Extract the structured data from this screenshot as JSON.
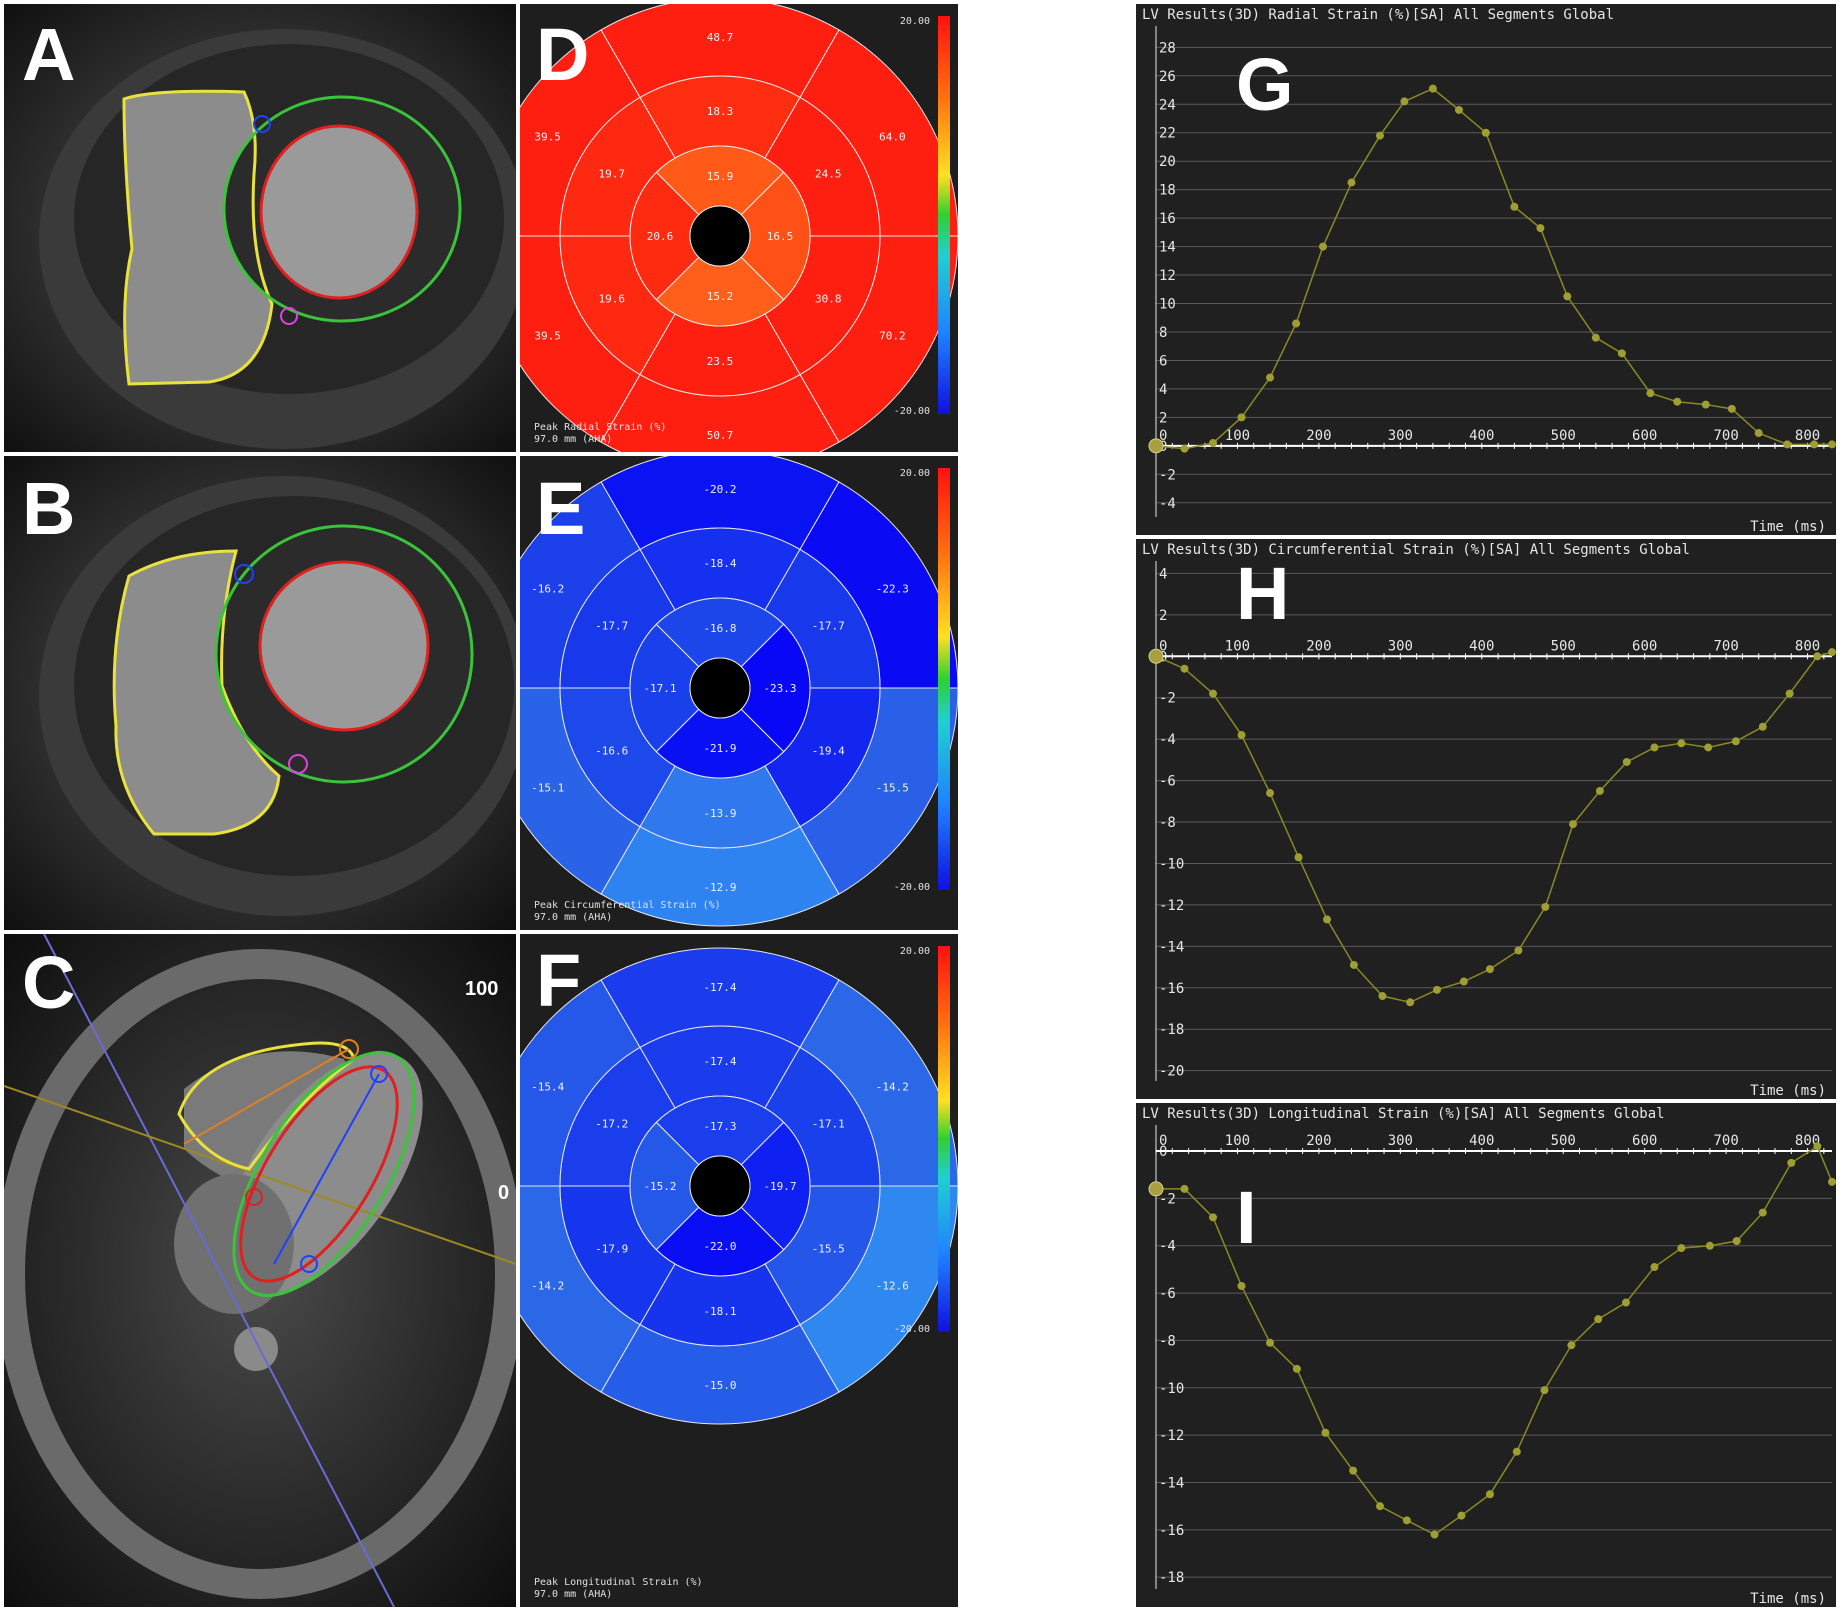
{
  "colors": {
    "background": "#000000",
    "trace": "#8a8a24",
    "marker": "#9e9e32",
    "grid": "#5a5a5a",
    "bullseye_stroke": "#e8e8e8"
  },
  "mri_panels": [
    {
      "letter": "A",
      "annotations": []
    },
    {
      "letter": "B",
      "annotations": []
    },
    {
      "letter": "C",
      "annotations": [
        "100",
        "0"
      ]
    }
  ],
  "bullseyes": [
    {
      "letter": "D",
      "caption_line1": "Peak Radial Strain (%)",
      "caption_line2": "97.0 mm (AHA)",
      "scale_max": "20.00",
      "scale_min": "-20.00",
      "basal": [
        {
          "value": "48.7",
          "color": "#ff1f10"
        },
        {
          "value": "64.0",
          "color": "#ff1f10"
        },
        {
          "value": "70.2",
          "color": "#ff1f10"
        },
        {
          "value": "50.7",
          "color": "#ff1f10"
        },
        {
          "value": "39.5",
          "color": "#ff1f10"
        },
        {
          "value": "39.5",
          "color": "#ff1f10"
        }
      ],
      "mid": [
        {
          "value": "18.3",
          "color": "#ff2e10"
        },
        {
          "value": "24.5",
          "color": "#ff1f10"
        },
        {
          "value": "30.8",
          "color": "#ff1f10"
        },
        {
          "value": "23.5",
          "color": "#ff1f10"
        },
        {
          "value": "19.6",
          "color": "#ff2810"
        },
        {
          "value": "19.7",
          "color": "#ff2810"
        }
      ],
      "apical": [
        {
          "value": "15.9",
          "color": "#ff5a18"
        },
        {
          "value": "16.5",
          "color": "#ff5015"
        },
        {
          "value": "15.2",
          "color": "#ff5f1a"
        },
        {
          "value": "20.6",
          "color": "#ff2b10"
        }
      ]
    },
    {
      "letter": "E",
      "caption_line1": "Peak Circumferential Strain (%)",
      "caption_line2": "97.0 mm (AHA)",
      "scale_max": "20.00",
      "scale_min": "-20.00",
      "basal": [
        {
          "value": "-20.2",
          "color": "#0a14f2"
        },
        {
          "value": "-22.3",
          "color": "#0a0af5"
        },
        {
          "value": "-15.5",
          "color": "#2a5fe8"
        },
        {
          "value": "-12.9",
          "color": "#2e83f0"
        },
        {
          "value": "-15.1",
          "color": "#2a62e8"
        },
        {
          "value": "-16.2",
          "color": "#1c40ea"
        }
      ],
      "mid": [
        {
          "value": "-18.4",
          "color": "#1530ee"
        },
        {
          "value": "-17.7",
          "color": "#1838ec"
        },
        {
          "value": "-19.4",
          "color": "#1226f0"
        },
        {
          "value": "-13.9",
          "color": "#2f78ee"
        },
        {
          "value": "-16.6",
          "color": "#1d48ea"
        },
        {
          "value": "-17.7",
          "color": "#1838ec"
        }
      ],
      "apical": [
        {
          "value": "-16.8",
          "color": "#1c46ea"
        },
        {
          "value": "-23.3",
          "color": "#0808f6"
        },
        {
          "value": "-21.9",
          "color": "#0a10f4"
        },
        {
          "value": "-17.1",
          "color": "#1a40eb"
        }
      ]
    },
    {
      "letter": "F",
      "caption_line1": "Peak Longitudinal Strain (%)",
      "caption_line2": "97.0 mm (AHA)",
      "scale_max": "20.00",
      "scale_min": "-20.00",
      "basal": [
        {
          "value": "-17.4",
          "color": "#1a3ced"
        },
        {
          "value": "-14.2",
          "color": "#2a68e8"
        },
        {
          "value": "-12.6",
          "color": "#2e88f0"
        },
        {
          "value": "-15.0",
          "color": "#255de9"
        },
        {
          "value": "-14.2",
          "color": "#2a68e8"
        },
        {
          "value": "-15.4",
          "color": "#2558e9"
        }
      ],
      "mid": [
        {
          "value": "-17.4",
          "color": "#1a3ced"
        },
        {
          "value": "-17.1",
          "color": "#1a40eb"
        },
        {
          "value": "-15.5",
          "color": "#2356e9"
        },
        {
          "value": "-18.1",
          "color": "#1634ee"
        },
        {
          "value": "-17.9",
          "color": "#1636ee"
        },
        {
          "value": "-17.2",
          "color": "#1a3eec"
        }
      ],
      "apical": [
        {
          "value": "-17.3",
          "color": "#1a3eec"
        },
        {
          "value": "-19.7",
          "color": "#0e20f2"
        },
        {
          "value": "-22.0",
          "color": "#0a0ef5"
        },
        {
          "value": "-15.2",
          "color": "#2458e9"
        }
      ]
    }
  ],
  "chart_data": [
    {
      "letter": "G",
      "type": "line",
      "title": "LV Results(3D) Radial Strain (%)[SA] All Segments Global",
      "xlabel": "Time (ms)",
      "ylabel": "",
      "xlim": [
        0,
        830
      ],
      "ylim": [
        -5,
        29.5
      ],
      "x_ticks": [
        100,
        200,
        300,
        400,
        500,
        600,
        700,
        800
      ],
      "y_ticks": [
        -4,
        -2,
        0,
        2,
        4,
        6,
        8,
        10,
        12,
        14,
        16,
        18,
        20,
        22,
        24,
        26,
        28
      ],
      "series": [
        {
          "x": [
            0,
            35,
            70,
            105,
            140,
            172,
            205,
            240,
            275,
            305,
            340,
            372,
            405,
            440,
            472,
            505,
            540,
            572,
            607,
            640,
            675,
            707,
            740,
            775,
            808,
            830
          ],
          "y": [
            0,
            -0.2,
            0.2,
            2,
            4.8,
            8.6,
            14,
            18.5,
            21.8,
            24.2,
            25.1,
            23.6,
            22,
            16.8,
            15.3,
            10.5,
            7.6,
            6.5,
            3.7,
            3.1,
            2.9,
            2.6,
            0.9,
            0.1,
            0.1,
            0.1
          ]
        }
      ]
    },
    {
      "letter": "H",
      "type": "line",
      "title": "LV Results(3D) Circumferential Strain (%)[SA] All Segments Global",
      "xlabel": "Time (ms)",
      "ylabel": "",
      "xlim": [
        0,
        830
      ],
      "ylim": [
        -20.5,
        4.6
      ],
      "x_ticks": [
        100,
        200,
        300,
        400,
        500,
        600,
        700,
        800
      ],
      "y_ticks": [
        -20,
        -18,
        -16,
        -14,
        -12,
        -10,
        -8,
        -6,
        -4,
        -2,
        0,
        2,
        4
      ],
      "series": [
        {
          "x": [
            0,
            35,
            70,
            105,
            140,
            175,
            210,
            243,
            278,
            312,
            345,
            378,
            410,
            445,
            478,
            512,
            545,
            578,
            612,
            645,
            678,
            712,
            745,
            778,
            812,
            830
          ],
          "y": [
            0,
            -0.6,
            -1.8,
            -3.8,
            -6.6,
            -9.7,
            -12.7,
            -14.9,
            -16.4,
            -16.7,
            -16.1,
            -15.7,
            -15.1,
            -14.2,
            -12.1,
            -8.1,
            -6.5,
            -5.1,
            -4.4,
            -4.2,
            -4.4,
            -4.1,
            -3.4,
            -1.8,
            0,
            0.2
          ]
        }
      ]
    },
    {
      "letter": "I",
      "type": "line",
      "title": "LV Results(3D) Longitudinal Strain (%)[SA] All Segments Global",
      "xlabel": "Time (ms)",
      "ylabel": "",
      "xlim": [
        0,
        830
      ],
      "ylim": [
        -18.5,
        1.1
      ],
      "x_ticks": [
        100,
        200,
        300,
        400,
        500,
        600,
        700,
        800
      ],
      "y_ticks": [
        -18,
        -16,
        -14,
        -12,
        -10,
        -8,
        -6,
        -4,
        -2,
        0
      ],
      "series": [
        {
          "x": [
            0,
            35,
            70,
            105,
            140,
            173,
            208,
            242,
            275,
            308,
            342,
            375,
            410,
            443,
            477,
            510,
            543,
            577,
            612,
            645,
            680,
            713,
            745,
            780,
            812,
            830
          ],
          "y": [
            -1.6,
            -1.6,
            -2.8,
            -5.7,
            -8.1,
            -9.2,
            -11.9,
            -13.5,
            -15,
            -15.6,
            -16.2,
            -15.4,
            -14.5,
            -12.7,
            -10.1,
            -8.2,
            -7.1,
            -6.4,
            -4.9,
            -4.1,
            -4,
            -3.8,
            -2.6,
            -0.5,
            0.2,
            -1.3
          ]
        }
      ]
    }
  ]
}
